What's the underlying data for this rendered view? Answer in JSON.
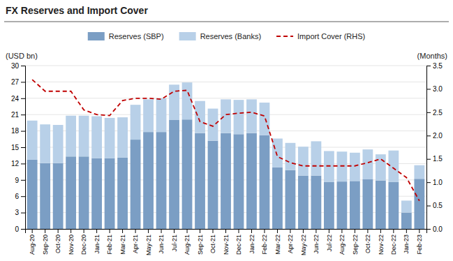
{
  "chart_data": {
    "type": "bar",
    "title": "FX Reserves and Import Cover",
    "ylabel": "(USD bn)",
    "y2label": "(Months)",
    "stacked": true,
    "grid": true,
    "legend": "top",
    "categories": [
      "Aug-20",
      "Sep-20",
      "Oct-20",
      "Nov-20",
      "Dec-20",
      "Jan-21",
      "Feb-21",
      "Mar-21",
      "Apr-21",
      "May-21",
      "Jun-21",
      "Jul-21",
      "Aug-21",
      "Sep-21",
      "Oct-21",
      "Nov-21",
      "Dec-21",
      "Jan-22",
      "Feb-22",
      "Mar-22",
      "Apr-22",
      "May-22",
      "Jun-22",
      "Jul-22",
      "Aug-22",
      "Sep-22",
      "Oct-22",
      "Nov-22",
      "Dec-22",
      "Jan-23",
      "Feb-23"
    ],
    "series": [
      {
        "name": "Reserves (SBP)",
        "type": "bar",
        "color": "#7b9ec4",
        "values": [
          12.7,
          12.1,
          12.1,
          13.3,
          13.3,
          13.0,
          13.0,
          13.1,
          16.4,
          17.8,
          17.8,
          20.0,
          20.1,
          17.6,
          16.2,
          17.6,
          17.4,
          17.6,
          17.2,
          11.3,
          10.8,
          9.8,
          9.8,
          8.6,
          8.7,
          8.8,
          9.1,
          8.9,
          8.6,
          3.0,
          9.2
        ]
      },
      {
        "name": "Reserves (Banks)",
        "type": "bar",
        "color": "#b8d0e8",
        "values": [
          7.2,
          7.1,
          7.0,
          7.5,
          7.5,
          7.7,
          7.4,
          7.4,
          6.4,
          6.0,
          6.2,
          6.5,
          6.8,
          5.9,
          5.9,
          6.2,
          6.3,
          6.2,
          6.0,
          5.3,
          5.0,
          5.3,
          6.3,
          5.7,
          5.5,
          5.2,
          5.5,
          4.8,
          5.8,
          2.2,
          2.5
        ]
      },
      {
        "name": "Import Cover (RHS)",
        "type": "line",
        "axis": "y2",
        "color": "#c00000",
        "line_style": "dashed",
        "values": [
          3.2,
          2.95,
          2.95,
          2.95,
          2.55,
          2.45,
          2.43,
          2.75,
          2.8,
          2.8,
          2.78,
          2.95,
          2.97,
          2.3,
          2.2,
          2.45,
          2.48,
          2.5,
          2.42,
          1.55,
          1.42,
          1.35,
          1.35,
          1.35,
          1.35,
          1.35,
          1.42,
          1.5,
          1.3,
          1.1,
          0.6
        ]
      }
    ],
    "ylim": [
      0,
      30
    ],
    "yticks": [
      0,
      3,
      6,
      9,
      12,
      15,
      18,
      21,
      24,
      27,
      30
    ],
    "y2lim": [
      0,
      3.5
    ],
    "y2ticks": [
      {
        "value": 0,
        "label": "0.0"
      },
      0.5,
      {
        "value": 1,
        "label": "1.0"
      },
      1.5,
      {
        "value": 2,
        "label": "2.0"
      },
      2.5,
      {
        "value": 3,
        "label": "3.0"
      },
      3.5
    ]
  }
}
